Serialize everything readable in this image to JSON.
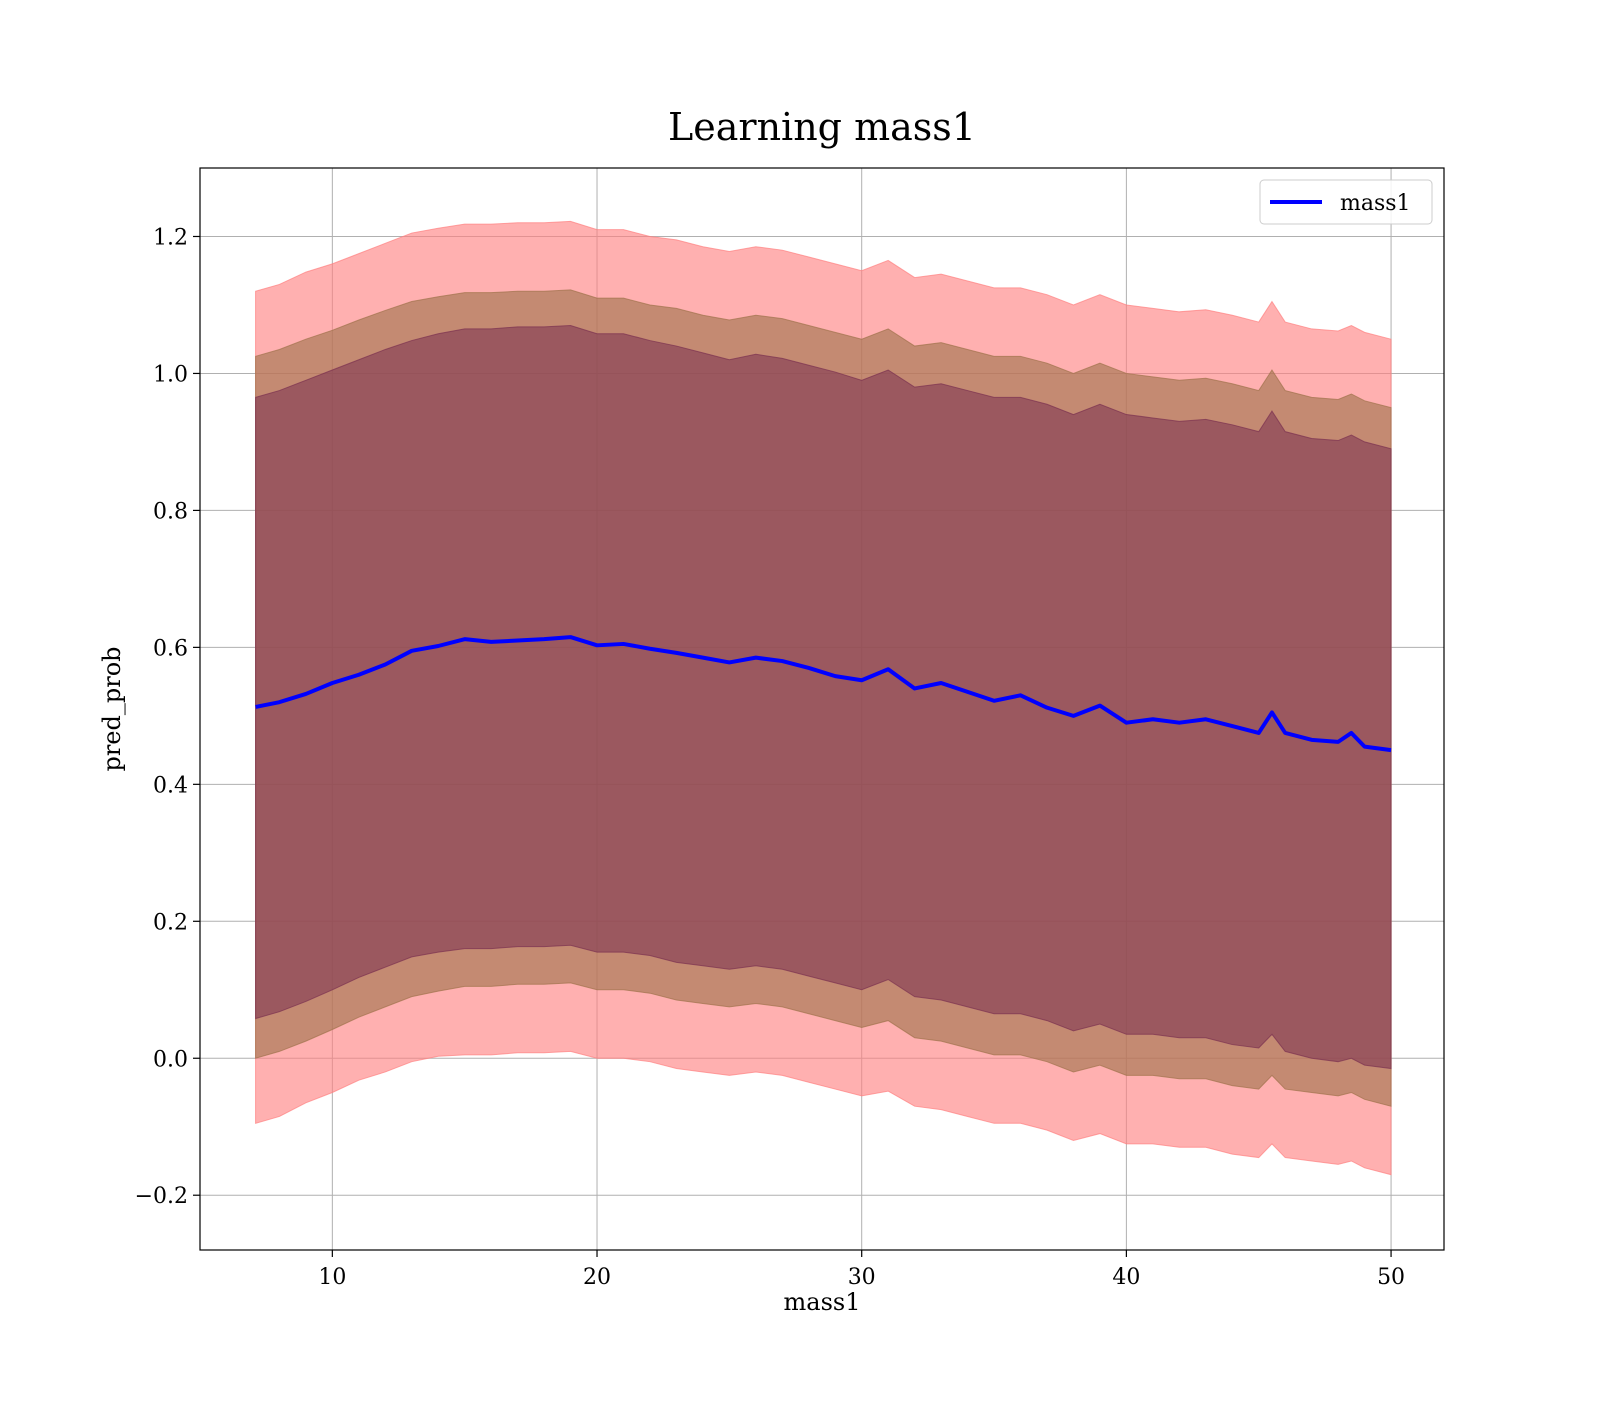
{
  "chart_data": {
    "type": "area",
    "title": "Learning mass1",
    "xlabel": "mass1",
    "ylabel": "pred_prob",
    "xlim": [
      5,
      52
    ],
    "ylim": [
      -0.28,
      1.3
    ],
    "xticks": [
      10,
      20,
      30,
      40,
      50
    ],
    "xtick_labels": [
      "10",
      "20",
      "30",
      "40",
      "50"
    ],
    "yticks": [
      -0.2,
      0.0,
      0.2,
      0.4,
      0.6,
      0.8,
      1.0,
      1.2
    ],
    "ytick_labels": [
      "−0.2",
      "0.0",
      "0.2",
      "0.4",
      "0.6",
      "0.8",
      "1.0",
      "1.2"
    ],
    "grid": true,
    "legend_position": "top-right",
    "legend": [
      "mass1"
    ],
    "colors": {
      "line": "#0000ff",
      "band_outer": "#ff7f7f",
      "band_middle": "#a0724c",
      "band_inner": "#7a3050"
    },
    "x": [
      7.1,
      8,
      9,
      10,
      11,
      12,
      13,
      14,
      15,
      16,
      17,
      18,
      19,
      20,
      21,
      22,
      23,
      24,
      25,
      26,
      27,
      28,
      29,
      30,
      31,
      32,
      33,
      34,
      35,
      36,
      37,
      38,
      39,
      40,
      41,
      42,
      43,
      44,
      45,
      45.5,
      46,
      47,
      48,
      48.5,
      49,
      50
    ],
    "series": [
      {
        "name": "mass1",
        "values": [
          0.513,
          0.52,
          0.532,
          0.548,
          0.56,
          0.575,
          0.595,
          0.602,
          0.612,
          0.608,
          0.61,
          0.612,
          0.615,
          0.603,
          0.605,
          0.598,
          0.592,
          0.585,
          0.578,
          0.585,
          0.58,
          0.57,
          0.558,
          0.552,
          0.568,
          0.54,
          0.548,
          0.535,
          0.522,
          0.53,
          0.512,
          0.5,
          0.515,
          0.49,
          0.495,
          0.49,
          0.495,
          0.485,
          0.475,
          0.505,
          0.475,
          0.465,
          0.462,
          0.475,
          0.455,
          0.45
        ]
      }
    ],
    "bands": [
      {
        "lower": [
          -0.095,
          -0.085,
          -0.065,
          -0.05,
          -0.032,
          -0.02,
          -0.005,
          0.003,
          0.005,
          0.005,
          0.008,
          0.008,
          0.01,
          0.0,
          0.0,
          -0.005,
          -0.015,
          -0.02,
          -0.025,
          -0.02,
          -0.025,
          -0.035,
          -0.045,
          -0.055,
          -0.048,
          -0.07,
          -0.075,
          -0.085,
          -0.095,
          -0.095,
          -0.105,
          -0.12,
          -0.11,
          -0.125,
          -0.125,
          -0.13,
          -0.13,
          -0.14,
          -0.145,
          -0.125,
          -0.145,
          -0.15,
          -0.155,
          -0.15,
          -0.16,
          -0.17
        ],
        "upper": [
          1.12,
          1.13,
          1.148,
          1.16,
          1.175,
          1.19,
          1.205,
          1.212,
          1.218,
          1.218,
          1.22,
          1.22,
          1.222,
          1.21,
          1.21,
          1.2,
          1.195,
          1.185,
          1.178,
          1.185,
          1.18,
          1.17,
          1.16,
          1.15,
          1.165,
          1.14,
          1.145,
          1.135,
          1.125,
          1.125,
          1.115,
          1.1,
          1.115,
          1.1,
          1.095,
          1.09,
          1.093,
          1.085,
          1.075,
          1.105,
          1.075,
          1.065,
          1.062,
          1.07,
          1.06,
          1.05
        ]
      },
      {
        "lower": [
          0.0,
          0.01,
          0.025,
          0.042,
          0.06,
          0.075,
          0.09,
          0.098,
          0.105,
          0.105,
          0.108,
          0.108,
          0.11,
          0.1,
          0.1,
          0.095,
          0.085,
          0.08,
          0.075,
          0.08,
          0.075,
          0.065,
          0.055,
          0.045,
          0.055,
          0.03,
          0.025,
          0.015,
          0.005,
          0.005,
          -0.005,
          -0.02,
          -0.01,
          -0.025,
          -0.025,
          -0.03,
          -0.03,
          -0.04,
          -0.045,
          -0.025,
          -0.045,
          -0.05,
          -0.055,
          -0.05,
          -0.06,
          -0.07
        ],
        "upper": [
          1.025,
          1.035,
          1.05,
          1.063,
          1.078,
          1.092,
          1.105,
          1.112,
          1.118,
          1.118,
          1.12,
          1.12,
          1.122,
          1.11,
          1.11,
          1.1,
          1.095,
          1.085,
          1.078,
          1.085,
          1.08,
          1.07,
          1.06,
          1.05,
          1.065,
          1.04,
          1.045,
          1.035,
          1.025,
          1.025,
          1.015,
          1.0,
          1.015,
          1.0,
          0.995,
          0.99,
          0.993,
          0.985,
          0.975,
          1.005,
          0.975,
          0.965,
          0.962,
          0.97,
          0.96,
          0.95
        ]
      },
      {
        "lower": [
          0.058,
          0.068,
          0.083,
          0.1,
          0.118,
          0.133,
          0.148,
          0.155,
          0.16,
          0.16,
          0.163,
          0.163,
          0.165,
          0.155,
          0.155,
          0.15,
          0.14,
          0.135,
          0.13,
          0.135,
          0.13,
          0.12,
          0.11,
          0.1,
          0.115,
          0.09,
          0.085,
          0.075,
          0.065,
          0.065,
          0.055,
          0.04,
          0.05,
          0.035,
          0.035,
          0.03,
          0.03,
          0.02,
          0.015,
          0.035,
          0.01,
          0.0,
          -0.005,
          0.0,
          -0.01,
          -0.015
        ],
        "upper": [
          0.965,
          0.975,
          0.99,
          1.005,
          1.02,
          1.035,
          1.048,
          1.058,
          1.065,
          1.065,
          1.068,
          1.068,
          1.07,
          1.058,
          1.058,
          1.048,
          1.04,
          1.03,
          1.02,
          1.028,
          1.022,
          1.012,
          1.002,
          0.99,
          1.005,
          0.98,
          0.985,
          0.975,
          0.965,
          0.965,
          0.955,
          0.94,
          0.955,
          0.94,
          0.935,
          0.93,
          0.933,
          0.925,
          0.915,
          0.945,
          0.915,
          0.905,
          0.902,
          0.91,
          0.9,
          0.89
        ]
      }
    ]
  }
}
